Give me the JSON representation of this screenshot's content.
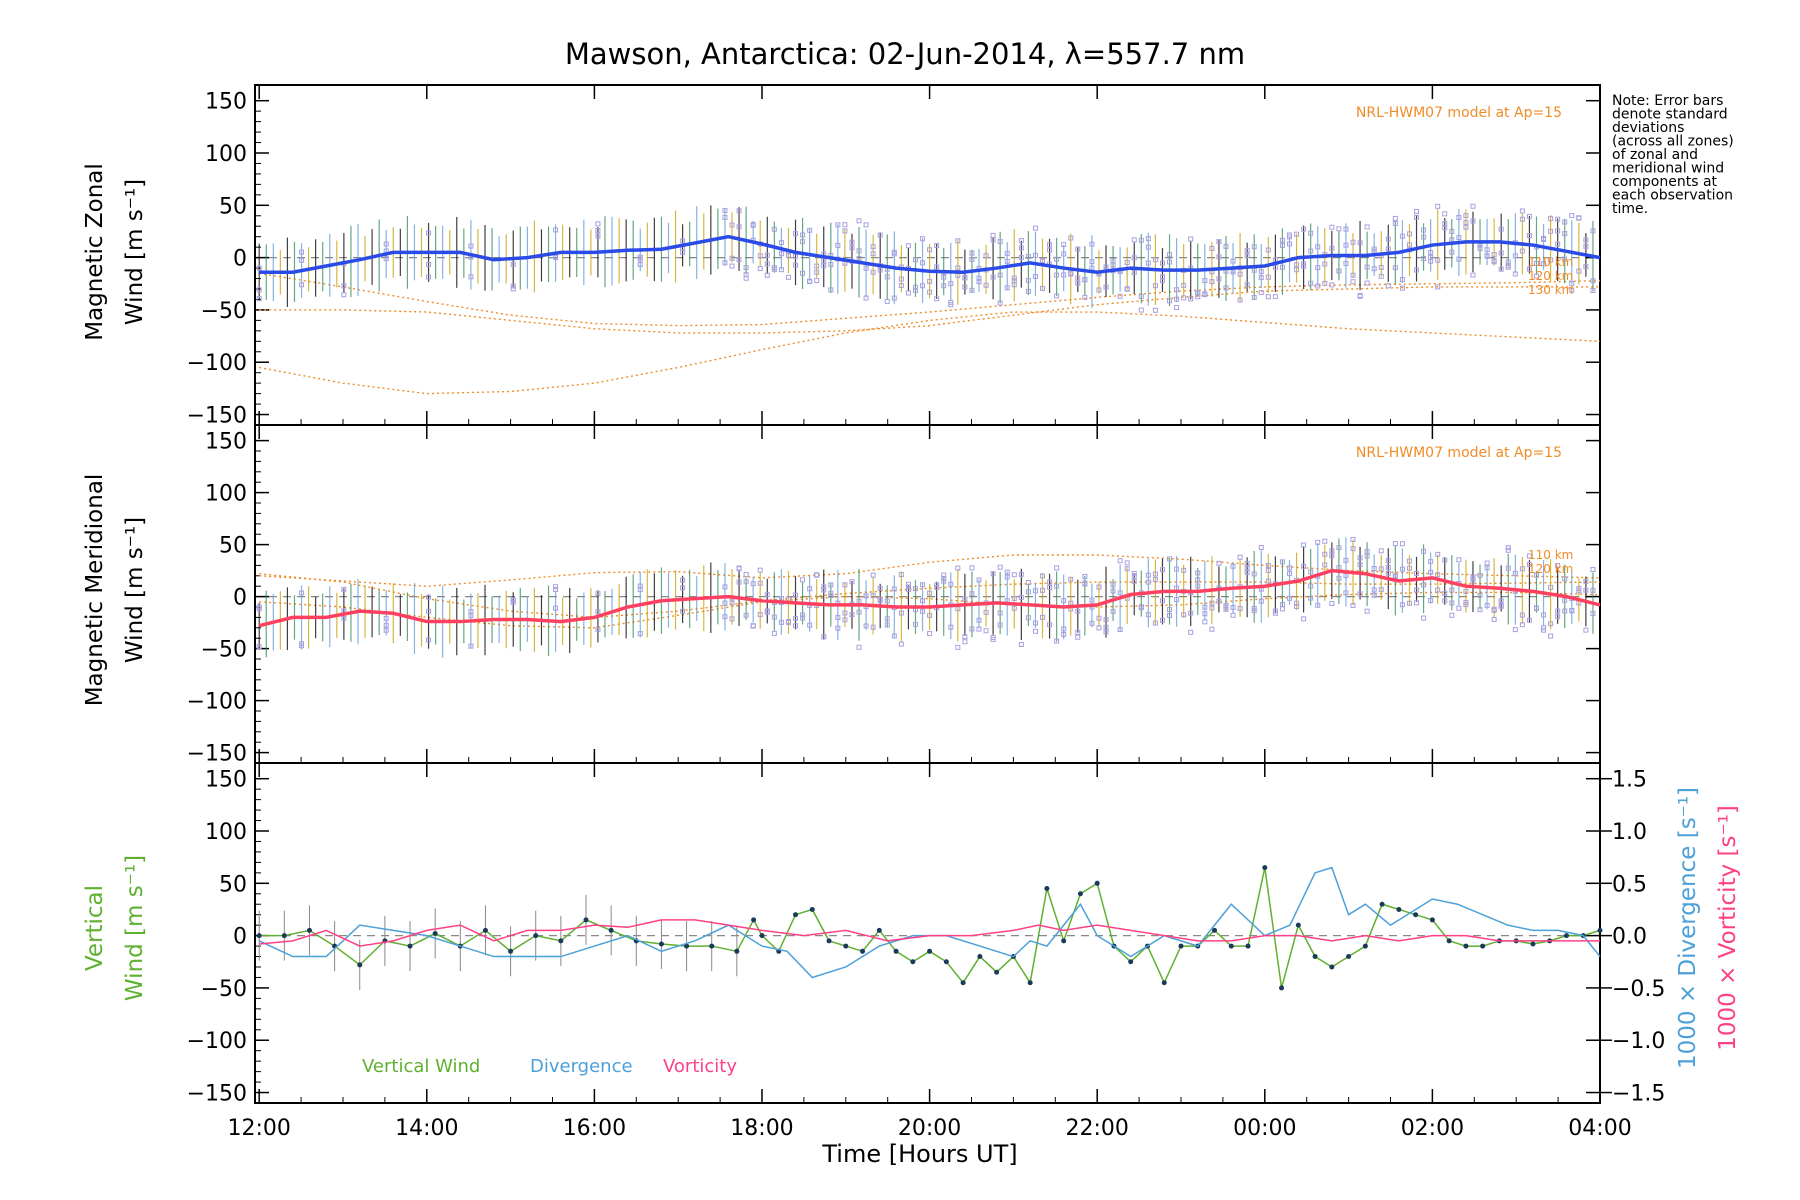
{
  "chart_data": [
    {
      "type": "line",
      "panel": "zonal",
      "title": "Mawson, Antarctica: 02-Jun-2014, λ=557.7 nm",
      "ylabel_line1": "Magnetic Zonal",
      "ylabel_line2": "Wind [m s⁻¹]",
      "ylim": [
        -160,
        165
      ],
      "yticks": [
        150,
        100,
        50,
        0,
        -50,
        -100,
        -150
      ],
      "model_label": "NRL-HWM07 model at Ap=15",
      "altitude_labels": [
        "110 km",
        "120 km",
        "130 km"
      ],
      "note_lines": [
        "Note: Error bars",
        "denote standard",
        "deviations",
        "(across all zones)",
        "of zonal and",
        "meridional wind",
        "components at",
        "each observation",
        "time."
      ],
      "series": [
        {
          "role": "observed-mean",
          "color": "#2a4be8",
          "x": [
            12.0,
            12.4,
            12.8,
            13.2,
            13.6,
            14.0,
            14.4,
            14.8,
            15.2,
            15.6,
            16.0,
            16.4,
            16.8,
            17.2,
            17.6,
            18.0,
            18.4,
            18.8,
            19.2,
            19.6,
            20.0,
            20.4,
            20.8,
            21.2,
            21.6,
            22.0,
            22.4,
            22.8,
            23.2,
            23.6,
            24.0,
            24.4,
            24.8,
            25.2,
            25.6,
            26.0,
            26.4,
            26.8,
            27.2,
            27.6,
            28.0
          ],
          "y": [
            -14,
            -14,
            -8,
            -2,
            5,
            5,
            5,
            -2,
            0,
            5,
            5,
            7,
            8,
            14,
            20,
            13,
            5,
            0,
            -5,
            -10,
            -13,
            -14,
            -10,
            -5,
            -10,
            -14,
            -10,
            -12,
            -12,
            -10,
            -8,
            0,
            2,
            2,
            5,
            12,
            15,
            15,
            12,
            6,
            0
          ]
        },
        {
          "role": "model-110km",
          "color": "#f08c28",
          "x": [
            12,
            13,
            14,
            15,
            16,
            17,
            18,
            19,
            20,
            21,
            22,
            23,
            24,
            25,
            26,
            27,
            28
          ],
          "y": [
            -15,
            -28,
            -42,
            -55,
            -63,
            -65,
            -64,
            -58,
            -52,
            -45,
            -38,
            -32,
            -28,
            -26,
            -25,
            -24,
            -22
          ]
        },
        {
          "role": "model-120km",
          "color": "#f08c28",
          "x": [
            12,
            13,
            14,
            15,
            16,
            17,
            18,
            19,
            20,
            21,
            22,
            23,
            24,
            25,
            26,
            27,
            28
          ],
          "y": [
            -50,
            -50,
            -52,
            -60,
            -68,
            -72,
            -72,
            -70,
            -65,
            -55,
            -45,
            -38,
            -32,
            -30,
            -28,
            -28,
            -28
          ]
        },
        {
          "role": "model-130km",
          "color": "#f08c28",
          "x": [
            12,
            13,
            14,
            15,
            16,
            17,
            18,
            19,
            20,
            21,
            22,
            23,
            24,
            25,
            26,
            27,
            28
          ],
          "y": [
            -105,
            -120,
            -130,
            -128,
            -120,
            -105,
            -88,
            -72,
            -60,
            -52,
            -52,
            -56,
            -62,
            -68,
            -72,
            -76,
            -80
          ]
        }
      ]
    },
    {
      "type": "line",
      "panel": "meridional",
      "ylabel_line1": "Magnetic Meridional",
      "ylabel_line2": "Wind [m s⁻¹]",
      "ylim": [
        -160,
        165
      ],
      "yticks": [
        150,
        100,
        50,
        0,
        -50,
        -100,
        -150
      ],
      "model_label": "NRL-HWM07 model at Ap=15",
      "altitude_labels": [
        "110 km",
        "120 km"
      ],
      "series": [
        {
          "role": "observed-mean",
          "color": "#ff4060",
          "x": [
            12.0,
            12.4,
            12.8,
            13.2,
            13.6,
            14.0,
            14.4,
            14.8,
            15.2,
            15.6,
            16.0,
            16.4,
            16.8,
            17.2,
            17.6,
            18.0,
            18.4,
            18.8,
            19.2,
            19.6,
            20.0,
            20.4,
            20.8,
            21.2,
            21.6,
            22.0,
            22.4,
            22.8,
            23.2,
            23.6,
            24.0,
            24.4,
            24.8,
            25.2,
            25.6,
            26.0,
            26.4,
            26.8,
            27.2,
            27.6,
            28.0
          ],
          "y": [
            -28,
            -20,
            -20,
            -14,
            -16,
            -24,
            -24,
            -22,
            -22,
            -24,
            -20,
            -10,
            -4,
            -2,
            0,
            -4,
            -6,
            -8,
            -8,
            -10,
            -10,
            -8,
            -6,
            -8,
            -10,
            -8,
            2,
            5,
            5,
            8,
            10,
            15,
            25,
            22,
            15,
            18,
            10,
            8,
            5,
            0,
            -8
          ]
        },
        {
          "role": "model-110km",
          "color": "#f08c28",
          "x": [
            12,
            13,
            14,
            15,
            16,
            17,
            18,
            19,
            20,
            21,
            22,
            23,
            24,
            25,
            26,
            27,
            28
          ],
          "y": [
            20,
            15,
            10,
            16,
            23,
            24,
            18,
            22,
            33,
            40,
            40,
            36,
            30,
            25,
            22,
            20,
            18
          ]
        },
        {
          "role": "model-120km",
          "color": "#f08c28",
          "x": [
            12,
            13,
            14,
            15,
            16,
            17,
            18,
            19,
            20,
            21,
            22,
            23,
            24,
            25,
            26,
            27,
            28
          ],
          "y": [
            22,
            14,
            -2,
            -14,
            -20,
            -14,
            -4,
            3,
            8,
            12,
            14,
            14,
            14,
            12,
            12,
            13,
            14
          ]
        },
        {
          "role": "model-130km",
          "color": "#f08c28",
          "x": [
            12,
            13,
            14,
            15,
            16,
            17,
            18,
            19,
            20,
            21,
            22,
            23,
            24,
            25,
            26,
            27,
            28
          ],
          "y": [
            -5,
            -10,
            -20,
            -28,
            -30,
            -18,
            -5,
            0,
            -2,
            -8,
            -10,
            -8,
            -2,
            2,
            4,
            4,
            2
          ]
        }
      ]
    },
    {
      "type": "line",
      "panel": "vertical",
      "ylabel_line1": "Vertical",
      "ylabel_line2": "Wind [m s⁻¹]",
      "ylim": [
        -160,
        165
      ],
      "yticks": [
        150,
        100,
        50,
        0,
        -50,
        -100,
        -150
      ],
      "y2label_divergence": "1000 × Divergence [s⁻¹]",
      "y2label_vorticity": "1000 × Vorticity [s⁻¹]",
      "y2lim": [
        -1.6,
        1.65
      ],
      "y2ticks": [
        "1.5",
        "1.0",
        "0.5",
        "0.0",
        "−0.5",
        "−1.0",
        "−1.5"
      ],
      "y2tick_values": [
        1.5,
        1.0,
        0.5,
        0.0,
        -0.5,
        -1.0,
        -1.5
      ],
      "xlabel": "Time [Hours UT]",
      "xticks": [
        "12:00",
        "14:00",
        "16:00",
        "18:00",
        "20:00",
        "22:00",
        "00:00",
        "02:00",
        "04:00"
      ],
      "xtick_values": [
        12,
        14,
        16,
        18,
        20,
        22,
        24,
        26,
        28
      ],
      "xlim": [
        11.95,
        28.0
      ],
      "series": [
        {
          "name": "Vertical Wind",
          "color": "#60b030",
          "x": [
            12.0,
            12.3,
            12.6,
            12.9,
            13.2,
            13.5,
            13.8,
            14.1,
            14.4,
            14.7,
            15.0,
            15.3,
            15.6,
            15.9,
            16.2,
            16.5,
            16.8,
            17.1,
            17.4,
            17.7,
            17.9,
            18.0,
            18.2,
            18.4,
            18.6,
            18.8,
            19.0,
            19.2,
            19.4,
            19.6,
            19.8,
            20.0,
            20.2,
            20.4,
            20.6,
            20.8,
            21.0,
            21.2,
            21.4,
            21.6,
            21.8,
            22.0,
            22.2,
            22.4,
            22.6,
            22.8,
            23.0,
            23.2,
            23.4,
            23.6,
            23.8,
            24.0,
            24.2,
            24.4,
            24.6,
            24.8,
            25.0,
            25.2,
            25.4,
            25.6,
            25.8,
            26.0,
            26.2,
            26.4,
            26.6,
            26.8,
            27.0,
            27.2,
            27.4,
            27.6,
            27.8,
            28.0
          ],
          "y": [
            0,
            0,
            5,
            -10,
            -28,
            -5,
            -10,
            2,
            -10,
            5,
            -15,
            0,
            -5,
            15,
            5,
            -5,
            -8,
            -10,
            -10,
            -15,
            15,
            0,
            -15,
            20,
            25,
            -5,
            -10,
            -15,
            5,
            -15,
            -25,
            -15,
            -25,
            -45,
            -20,
            -35,
            -20,
            -45,
            45,
            -5,
            40,
            50,
            -10,
            -25,
            -10,
            -45,
            -10,
            -10,
            5,
            -10,
            -10,
            65,
            -50,
            10,
            -20,
            -30,
            -20,
            -10,
            30,
            25,
            20,
            15,
            -5,
            -10,
            -10,
            -5,
            -5,
            -8,
            -5,
            0,
            0,
            5
          ]
        },
        {
          "name": "Divergence",
          "color": "#4da0d8",
          "x": [
            12.0,
            12.4,
            12.8,
            13.2,
            13.6,
            14.0,
            14.4,
            14.8,
            15.2,
            15.6,
            16.0,
            16.4,
            16.8,
            17.2,
            17.6,
            18.0,
            18.3,
            18.6,
            19.0,
            19.4,
            19.8,
            20.2,
            20.6,
            21.0,
            21.2,
            21.4,
            21.6,
            21.8,
            22.0,
            22.4,
            22.8,
            23.2,
            23.6,
            24.0,
            24.3,
            24.6,
            24.8,
            25.0,
            25.2,
            25.5,
            25.8,
            26.0,
            26.3,
            26.6,
            26.9,
            27.2,
            27.5,
            27.8,
            28.0
          ],
          "y": [
            -0.05,
            -0.2,
            -0.2,
            0.1,
            0.05,
            0.0,
            -0.1,
            -0.2,
            -0.2,
            -0.2,
            -0.1,
            0.0,
            -0.15,
            -0.05,
            0.1,
            -0.1,
            -0.15,
            -0.4,
            -0.3,
            -0.1,
            0.0,
            0.0,
            -0.1,
            -0.2,
            -0.05,
            -0.1,
            0.1,
            0.3,
            0.0,
            -0.2,
            0.0,
            -0.1,
            0.3,
            0.0,
            0.1,
            0.6,
            0.65,
            0.2,
            0.3,
            0.1,
            0.25,
            0.35,
            0.3,
            0.2,
            0.1,
            0.05,
            0.05,
            0.0,
            -0.2
          ]
        },
        {
          "name": "Vorticity",
          "color": "#ff4088",
          "x": [
            12.0,
            12.4,
            12.8,
            13.2,
            13.6,
            14.0,
            14.4,
            14.8,
            15.2,
            15.6,
            16.0,
            16.4,
            16.8,
            17.2,
            17.6,
            18.0,
            18.5,
            19.0,
            19.5,
            20.0,
            20.5,
            21.0,
            21.3,
            21.6,
            22.0,
            22.4,
            22.8,
            23.2,
            23.6,
            24.0,
            24.4,
            24.8,
            25.2,
            25.6,
            26.0,
            26.4,
            26.8,
            27.2,
            27.6,
            28.0
          ],
          "y": [
            -0.08,
            -0.05,
            0.05,
            -0.1,
            -0.05,
            0.05,
            0.1,
            -0.05,
            0.05,
            0.05,
            0.1,
            0.08,
            0.15,
            0.15,
            0.1,
            0.05,
            0.0,
            0.05,
            -0.05,
            0.0,
            0.0,
            0.05,
            0.1,
            0.05,
            0.1,
            0.05,
            0.0,
            -0.05,
            -0.05,
            0.0,
            0.0,
            -0.05,
            0.0,
            -0.05,
            0.0,
            0.0,
            -0.05,
            -0.05,
            -0.05,
            -0.05
          ]
        }
      ]
    }
  ]
}
